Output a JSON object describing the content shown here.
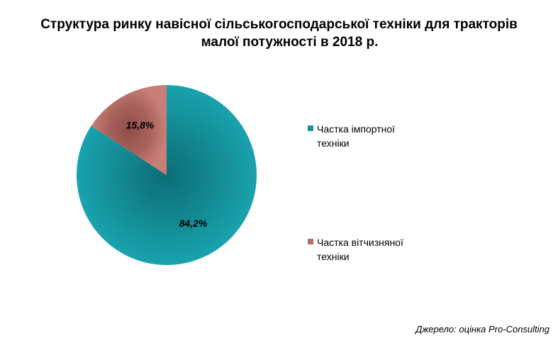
{
  "title_line1": "Структура ринку навісної сільськогосподарської техніки для тракторів",
  "title_line2": "малої потужності в 2018 р.",
  "source": "Джерело: оцінка Pro-Consulting",
  "chart_data": {
    "type": "pie",
    "title": "Структура ринку навісної сільськогосподарської техніки для тракторів малої потужності в 2018 р.",
    "series": [
      {
        "name": "Частка  імпортної техніки",
        "value": 84.2,
        "label": "84,2%",
        "color": "#16959f"
      },
      {
        "name": "Частка  вітчизняної техніки",
        "value": 15.8,
        "label": "15,8%",
        "color": "#b76e68"
      }
    ],
    "legend_position": "right"
  }
}
